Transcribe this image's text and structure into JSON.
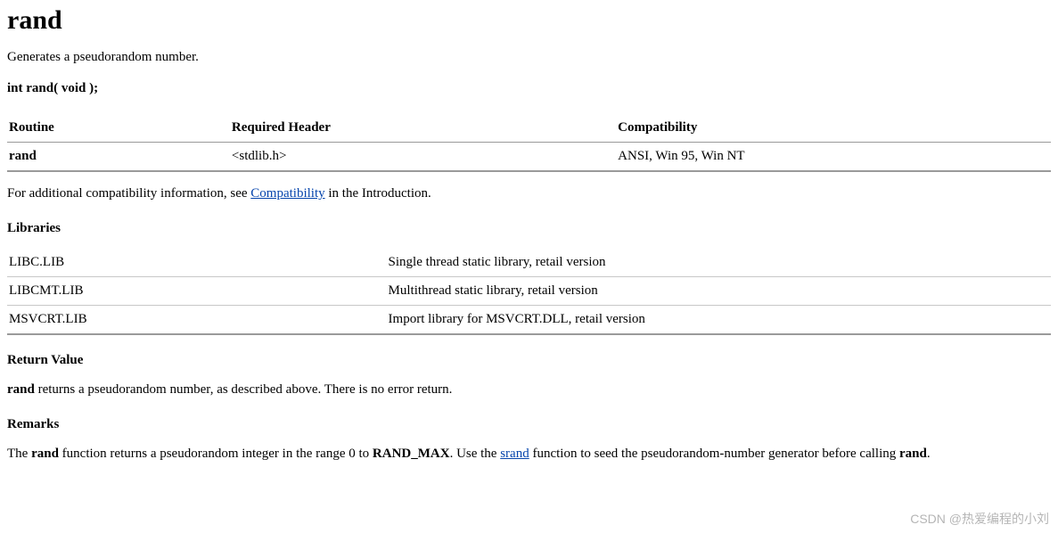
{
  "title": "rand",
  "summary": "Generates a pseudorandom number.",
  "signature": "int rand( void );",
  "table1": {
    "headers": {
      "c1": "Routine",
      "c2": "Required Header",
      "c3": "Compatibility"
    },
    "row": {
      "c1": "rand",
      "c2": "<stdlib.h>",
      "c3": "ANSI, Win 95, Win NT"
    }
  },
  "compat": {
    "pre": "For additional compatibility information, see ",
    "link": "Compatibility",
    "post": " in the Introduction."
  },
  "libs_heading": "Libraries",
  "table2": {
    "rows": [
      {
        "c1": "LIBC.LIB",
        "c2": "Single thread static library, retail version"
      },
      {
        "c1": "LIBCMT.LIB",
        "c2": "Multithread static library, retail version"
      },
      {
        "c1": "MSVCRT.LIB",
        "c2": "Import library for MSVCRT.DLL, retail version"
      }
    ]
  },
  "retval_heading": "Return Value",
  "retval": {
    "bold": "rand",
    "text": " returns a pseudorandom number, as described above. There is no error return."
  },
  "remarks_heading": "Remarks",
  "remarks": {
    "p1": "The ",
    "b1": "rand",
    "p2": " function returns a pseudorandom integer in the range 0 to ",
    "b2": "RAND_MAX",
    "p3": ". Use the ",
    "link": "srand",
    "p4": " function to seed the pseudorandom-number generator before calling ",
    "b3": "rand",
    "p5": "."
  },
  "watermark": "CSDN @热爱编程的小刘"
}
